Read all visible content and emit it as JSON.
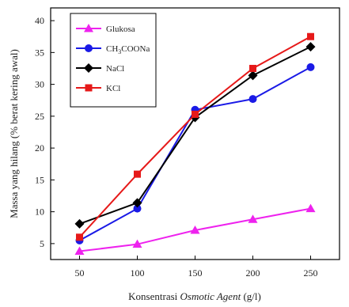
{
  "chart_data": {
    "type": "line",
    "x": [
      50,
      100,
      150,
      200,
      250
    ],
    "xticks": [
      "50",
      "100",
      "150",
      "200",
      "250"
    ],
    "yticks": [
      "5",
      "10",
      "15",
      "20",
      "25",
      "30",
      "35",
      "40"
    ],
    "xlim": [
      25,
      275
    ],
    "ylim": [
      2.5,
      42
    ],
    "xlabel_prefix": "Konsentrasi ",
    "xlabel_italic": "Osmotic Agent",
    "xlabel_suffix": " (g/l)",
    "ylabel": "Massa yang hilang (% berat kering awal)",
    "legend_position": "top-left",
    "series": [
      {
        "name": "Glukosa",
        "name_main": "Glukosa",
        "name_sub": "",
        "name_rest": "",
        "color": "#ee22ee",
        "marker": "triangle",
        "values": [
          3.8,
          4.9,
          7.1,
          8.8,
          10.5
        ]
      },
      {
        "name": "CH3COONa",
        "name_main": "CH",
        "name_sub": "3",
        "name_rest": "COONa",
        "color": "#1a1ae6",
        "marker": "circle",
        "values": [
          5.5,
          10.5,
          26.0,
          27.7,
          32.7
        ]
      },
      {
        "name": "NaCl",
        "name_main": "NaCl",
        "name_sub": "",
        "name_rest": "",
        "color": "#000000",
        "marker": "diamond",
        "values": [
          8.1,
          11.4,
          24.8,
          31.4,
          35.9
        ]
      },
      {
        "name": "KCl",
        "name_main": "KCl",
        "name_sub": "",
        "name_rest": "",
        "color": "#e61919",
        "marker": "square",
        "values": [
          6.0,
          15.9,
          25.3,
          32.5,
          37.5
        ]
      }
    ]
  }
}
